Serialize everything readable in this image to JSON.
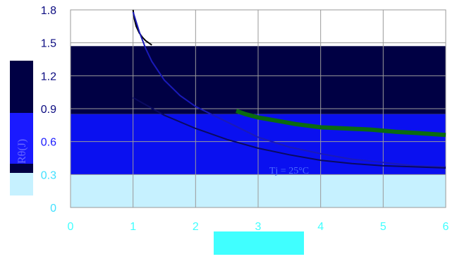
{
  "chart_data": {
    "type": "line",
    "title": "",
    "xlabel": "",
    "ylabel": "Rθ(J)",
    "xlim": [
      0,
      6
    ],
    "ylim": [
      0,
      1.8
    ],
    "x_ticks": [
      "0",
      "1",
      "2",
      "3",
      "4",
      "5",
      "6"
    ],
    "y_ticks": [
      "0",
      "0.3",
      "0.6",
      "0.9",
      "1.2",
      "1.5",
      "1.8"
    ],
    "grid": true,
    "annotation": "Tj = 25°C",
    "bands": [
      {
        "from": 0.85,
        "to": 1.47,
        "color": "#000044"
      },
      {
        "from": 0.3,
        "to": 0.85,
        "color": "#0a10f0"
      },
      {
        "from": 0.0,
        "to": 0.3,
        "color": "#c6f1ff"
      }
    ],
    "series": [
      {
        "color": "#000000",
        "x": [
          1.0,
          1.02,
          1.05,
          1.1,
          1.15,
          1.2,
          1.25,
          1.3
        ],
        "y": [
          1.8,
          1.72,
          1.65,
          1.59,
          1.55,
          1.52,
          1.5,
          1.48
        ]
      },
      {
        "color": "#1a1ab8",
        "x": [
          1.0,
          1.1,
          1.2,
          1.3,
          1.5,
          1.75,
          2.0,
          2.5,
          3.0,
          3.5,
          4.0,
          4.5,
          5.0,
          5.5,
          6.0
        ],
        "y": [
          1.78,
          1.6,
          1.45,
          1.33,
          1.16,
          1.02,
          0.92,
          0.78,
          0.64,
          0.55,
          0.49,
          0.44,
          0.41,
          0.38,
          0.37
        ]
      },
      {
        "color": "#0a0a60",
        "x": [
          1.0,
          1.5,
          2.0,
          2.5,
          3.0,
          3.5,
          4.0,
          4.5,
          5.0,
          5.5,
          6.0
        ],
        "y": [
          1.0,
          0.84,
          0.72,
          0.62,
          0.54,
          0.48,
          0.43,
          0.4,
          0.38,
          0.37,
          0.36
        ]
      },
      {
        "color": "#0a6a10",
        "x": [
          2.65,
          2.8,
          3.0,
          3.3,
          3.6,
          4.0,
          4.4,
          4.8,
          5.2,
          5.5,
          6.0
        ],
        "y": [
          0.88,
          0.85,
          0.82,
          0.79,
          0.76,
          0.73,
          0.72,
          0.71,
          0.69,
          0.68,
          0.66
        ]
      }
    ],
    "legend": {
      "position": "bottom-center",
      "color": "#40ffff"
    }
  }
}
